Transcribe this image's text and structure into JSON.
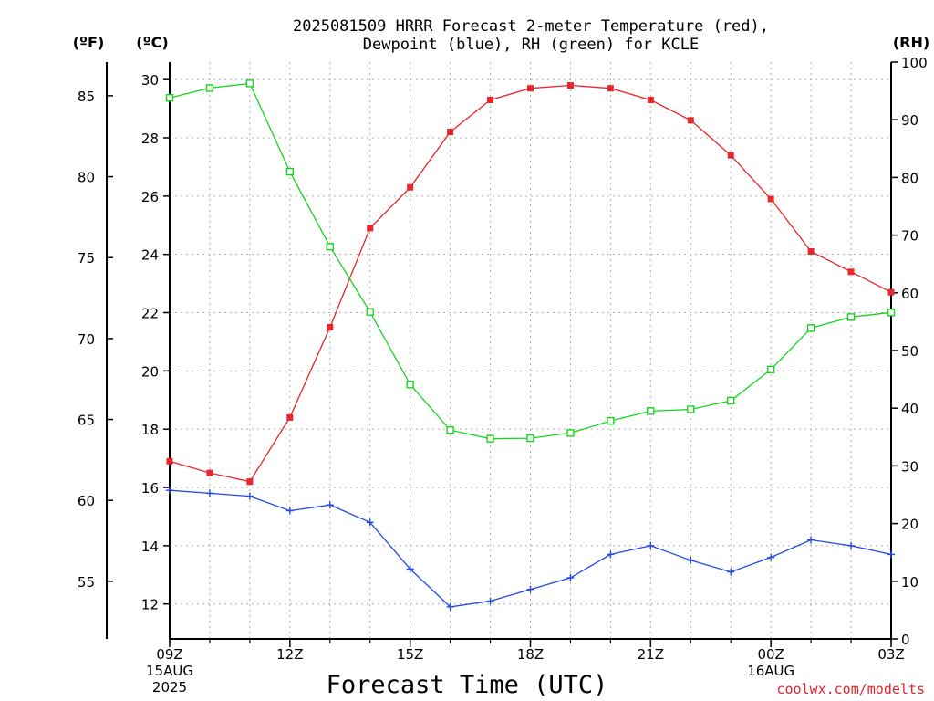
{
  "chart_data": {
    "type": "line",
    "title_lines": [
      "2025081509 HRRR Forecast 2-meter Temperature (red),",
      "Dewpoint (blue), RH (green) for KCLE"
    ],
    "xlabel": "Forecast Time (UTC)",
    "credit": "coolwx.com/modelts",
    "units": {
      "left_outer": "(ºF)",
      "left_inner": "(ºC)",
      "right": "(RH)"
    },
    "x_hours": [
      0,
      1,
      2,
      3,
      4,
      5,
      6,
      7,
      8,
      9,
      10,
      11,
      12,
      13,
      14,
      15,
      16,
      17,
      18
    ],
    "x_tick_labels": [
      {
        "hour": 0,
        "lines": [
          "09Z",
          "15AUG",
          "2025"
        ]
      },
      {
        "hour": 3,
        "lines": [
          "12Z"
        ]
      },
      {
        "hour": 6,
        "lines": [
          "15Z"
        ]
      },
      {
        "hour": 9,
        "lines": [
          "18Z"
        ]
      },
      {
        "hour": 12,
        "lines": [
          "21Z"
        ]
      },
      {
        "hour": 15,
        "lines": [
          "00Z",
          "16AUG"
        ]
      },
      {
        "hour": 18,
        "lines": [
          "03Z"
        ]
      }
    ],
    "celsius_axis": {
      "range": [
        10.8,
        30.6
      ],
      "ticks": [
        12,
        14,
        16,
        18,
        20,
        22,
        24,
        26,
        28,
        30
      ]
    },
    "fahrenheit_axis": {
      "ticks": [
        55,
        60,
        65,
        70,
        75,
        80,
        85
      ]
    },
    "rh_axis": {
      "range": [
        0,
        100
      ],
      "ticks": [
        0,
        10,
        20,
        30,
        40,
        50,
        60,
        70,
        80,
        90,
        100
      ]
    },
    "grid": true,
    "series": [
      {
        "name": "Temperature",
        "color": "#e8262c",
        "marker": "filled-square",
        "axis": "celsius",
        "values": [
          16.9,
          16.5,
          16.2,
          18.4,
          21.5,
          24.9,
          26.3,
          28.2,
          29.3,
          29.7,
          29.8,
          29.7,
          29.3,
          28.6,
          27.4,
          25.9,
          24.1,
          23.4,
          22.7
        ]
      },
      {
        "name": "Dewpoint",
        "color": "#2248e6",
        "marker": "plus",
        "axis": "celsius",
        "values": [
          15.9,
          15.8,
          15.7,
          15.2,
          15.4,
          14.8,
          13.2,
          11.9,
          12.1,
          12.5,
          12.9,
          13.7,
          14.0,
          13.5,
          13.1,
          13.6,
          14.2,
          14.0,
          13.7
        ]
      },
      {
        "name": "RH",
        "color": "#17d41f",
        "marker": "open-square",
        "axis": "rh",
        "values": [
          93.8,
          95.5,
          96.3,
          81.0,
          68.0,
          56.7,
          44.1,
          36.2,
          34.7,
          34.8,
          35.7,
          37.8,
          39.5,
          39.8,
          41.3,
          46.7,
          53.9,
          55.8,
          56.6
        ]
      }
    ]
  }
}
